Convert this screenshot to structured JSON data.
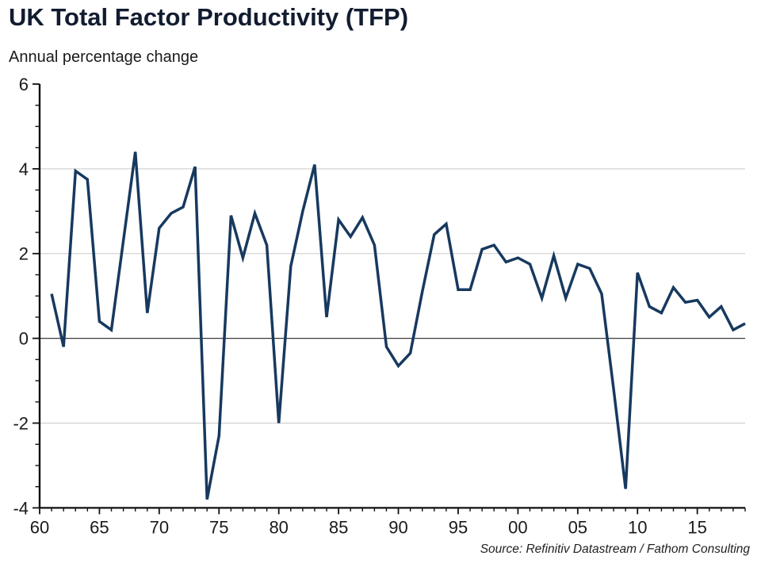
{
  "header": {
    "title": "UK Total Factor Productivity (TFP)",
    "subtitle": "Annual percentage change"
  },
  "footer": {
    "source": "Source: Refinitiv Datastream / Fathom Consulting"
  },
  "chart_data": {
    "type": "line",
    "title": "UK Total Factor Productivity (TFP)",
    "subtitle": "Annual percentage change",
    "source": "Source: Refinitiv Datastream / Fathom Consulting",
    "x": [
      1961,
      1962,
      1963,
      1964,
      1965,
      1966,
      1967,
      1968,
      1969,
      1970,
      1971,
      1972,
      1973,
      1974,
      1975,
      1976,
      1977,
      1978,
      1979,
      1980,
      1981,
      1982,
      1983,
      1984,
      1985,
      1986,
      1987,
      1988,
      1989,
      1990,
      1991,
      1992,
      1993,
      1994,
      1995,
      1996,
      1997,
      1998,
      1999,
      2000,
      2001,
      2002,
      2003,
      2004,
      2005,
      2006,
      2007,
      2008,
      2009,
      2010,
      2011,
      2012,
      2013,
      2014,
      2015,
      2016,
      2017,
      2018,
      2019
    ],
    "series": [
      {
        "name": "UK TFP annual percentage change",
        "values": [
          1.05,
          -0.2,
          3.95,
          3.75,
          0.4,
          0.2,
          2.3,
          4.4,
          0.6,
          2.6,
          2.95,
          3.1,
          4.05,
          -3.8,
          -2.3,
          2.9,
          1.9,
          2.95,
          2.2,
          -2.0,
          1.7,
          3.0,
          4.1,
          0.5,
          2.8,
          2.4,
          2.85,
          2.2,
          -0.2,
          -0.65,
          -0.35,
          1.1,
          2.45,
          2.7,
          1.15,
          1.15,
          2.1,
          2.2,
          1.8,
          1.9,
          1.75,
          0.95,
          1.95,
          0.95,
          1.75,
          1.65,
          1.05,
          -1.2,
          -3.55,
          1.55,
          0.75,
          0.6,
          1.2,
          0.85,
          0.9,
          0.5,
          0.75,
          0.2,
          0.35
        ]
      }
    ],
    "x_range": [
      1960,
      2019
    ],
    "y_range": [
      -4,
      6
    ],
    "y_ticks": [
      6,
      4,
      2,
      0,
      -2,
      -4
    ],
    "y_tick_labels": [
      "6",
      "4",
      "2",
      "0",
      "-2",
      "-4"
    ],
    "y_minor_step": 0.5,
    "x_tick_years": [
      1960,
      1965,
      1970,
      1975,
      1980,
      1985,
      1990,
      1995,
      2000,
      2005,
      2010,
      2015
    ],
    "x_tick_labels": [
      "60",
      "65",
      "70",
      "75",
      "80",
      "85",
      "90",
      "95",
      "00",
      "05",
      "10",
      "15"
    ],
    "x_minor_step": 1,
    "gridlines_y": [
      4,
      2,
      -2
    ],
    "zero_line": 0,
    "grid": "horizontal-only",
    "legend": "none",
    "colors": {
      "line": "#17395f",
      "grid": "#c9c9c9",
      "zero_line": "#3c3c3c",
      "axis": "#111111",
      "tick_text": "#1a1a1a",
      "title": "#121c30",
      "background": "#ffffff"
    }
  }
}
